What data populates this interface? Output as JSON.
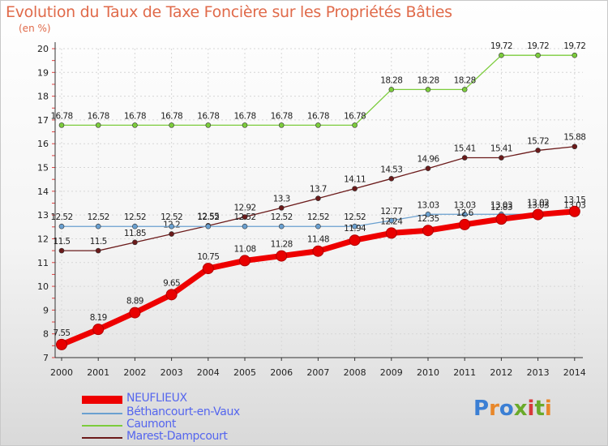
{
  "title": "Evolution du Taux de Taxe Foncière sur les Propriétés Bâties",
  "unit": "(en %)",
  "logo": {
    "text": "Proxiti",
    "colors": [
      "#3b7fd4",
      "#e8872a",
      "#3b7fd4",
      "#6aaa2a",
      "#d83a3a",
      "#6aaa2a",
      "#e8872a"
    ]
  },
  "chart_data": {
    "type": "line",
    "title": "Evolution du Taux de Taxe Foncière sur les Propriétés Bâties",
    "ylabel": "(en %)",
    "x": [
      "2000",
      "2001",
      "2002",
      "2003",
      "2004",
      "2005",
      "2006",
      "2007",
      "2008",
      "2009",
      "2010",
      "2011",
      "2012",
      "2013",
      "2014"
    ],
    "yticks": [
      "7",
      "8",
      "9",
      "10",
      "11",
      "12",
      "13",
      "14",
      "15",
      "16",
      "17",
      "18",
      "19",
      "20"
    ],
    "ylim": [
      7,
      20
    ],
    "grid": true,
    "legend_position": "bottom-left",
    "series": [
      {
        "name": "Caumont",
        "color": "#7ccc3c",
        "values": [
          16.78,
          16.78,
          16.78,
          16.78,
          16.78,
          16.78,
          16.78,
          16.78,
          16.78,
          18.28,
          18.28,
          18.28,
          19.72,
          19.72,
          19.72
        ],
        "labels": [
          "16.78",
          "16.78",
          "16.78",
          "16.78",
          "16.78",
          "16.78",
          "16.78",
          "16.78",
          "16.78",
          "18.28",
          "18.28",
          "18.28",
          "19.72",
          "19.72",
          "19.72"
        ]
      },
      {
        "name": "Marest-Dampcourt",
        "color": "#6b1a1a",
        "values": [
          11.5,
          11.5,
          11.85,
          12.2,
          12.55,
          12.92,
          13.3,
          13.7,
          14.11,
          14.53,
          14.96,
          15.41,
          15.41,
          15.72,
          15.88
        ],
        "labels": [
          "11.5",
          "11.5",
          "11.85",
          "12.2",
          "12.55",
          "12.92",
          "13.3",
          "13.7",
          "14.11",
          "14.53",
          "14.96",
          "15.41",
          "15.41",
          "15.72",
          "15.88"
        ]
      },
      {
        "name": "Béthancourt-en-Vaux",
        "color": "#6aa0d0",
        "values": [
          12.52,
          12.52,
          12.52,
          12.52,
          12.52,
          12.52,
          12.52,
          12.52,
          12.52,
          12.77,
          13.03,
          13.03,
          13.03,
          13.03,
          13.03
        ],
        "labels": [
          "12.52",
          "12.52",
          "12.52",
          "12.52",
          "12.52",
          "12.52",
          "12.52",
          "12.52",
          "12.52",
          "12.77",
          "13.03",
          "13.03",
          "13.03",
          "13.03",
          "13.03"
        ]
      },
      {
        "name": "NEUFLIEUX",
        "color": "#ee0000",
        "values": [
          7.55,
          8.19,
          8.89,
          9.65,
          10.75,
          11.08,
          11.28,
          11.48,
          11.94,
          12.24,
          12.35,
          12.6,
          12.83,
          13.02,
          13.15
        ],
        "labels": [
          "7.55",
          "8.19",
          "8.89",
          "9.65",
          "10.75",
          "11.08",
          "11.28",
          "11.48",
          "11.94",
          "12.24",
          "12.35",
          "12.6",
          "12.83",
          "13.02",
          "13.15"
        ]
      }
    ]
  },
  "legend": [
    {
      "name": "NEUFLIEUX",
      "color": "#ee0000",
      "thick": true
    },
    {
      "name": "Béthancourt-en-Vaux",
      "color": "#6aa0d0",
      "thick": false
    },
    {
      "name": "Caumont",
      "color": "#7ccc3c",
      "thick": false
    },
    {
      "name": "Marest-Dampcourt",
      "color": "#6b1a1a",
      "thick": false
    }
  ]
}
